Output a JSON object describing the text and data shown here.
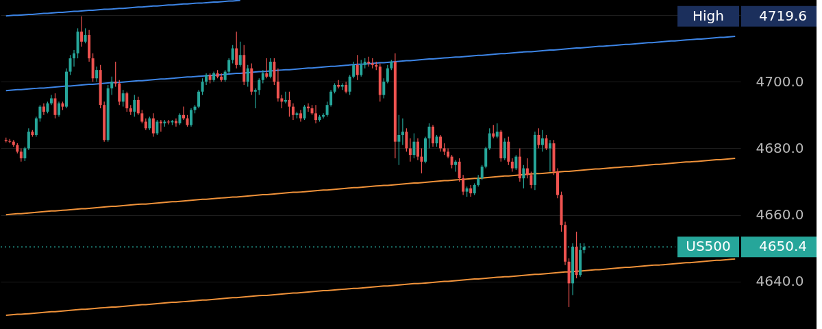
{
  "chart_data": {
    "type": "candlestick",
    "categories": [
      null,
      null,
      null,
      null,
      null,
      null,
      null,
      null,
      null,
      null,
      null,
      null,
      null,
      null,
      null,
      null,
      null,
      null,
      null,
      null,
      null,
      null,
      null,
      null,
      null,
      null,
      null,
      null,
      null,
      null,
      null,
      null,
      null,
      null,
      null,
      null,
      null,
      null,
      null,
      null,
      null,
      null,
      null,
      null,
      null,
      null,
      null,
      null,
      null,
      null,
      null,
      null,
      null,
      null,
      null,
      null,
      null,
      null,
      null,
      null,
      null,
      null,
      null,
      null,
      null,
      null,
      null,
      null,
      null,
      null,
      null,
      null,
      null,
      null,
      null,
      null,
      null,
      null,
      null,
      null,
      null,
      null,
      null,
      null,
      null,
      null,
      null,
      null,
      null,
      null,
      null,
      null,
      null,
      null,
      null,
      null,
      null,
      null,
      null,
      null,
      null,
      null,
      null,
      null,
      null,
      null,
      null,
      null,
      null,
      null,
      null,
      null,
      null,
      null,
      null,
      null,
      null,
      null,
      null,
      null,
      null,
      null,
      null,
      null,
      null,
      null,
      null,
      null,
      null,
      null,
      null,
      null,
      null,
      null,
      null,
      null,
      null,
      null,
      null,
      null,
      null,
      null,
      null,
      null,
      null,
      null,
      null,
      null,
      null,
      null,
      null,
      null,
      null,
      null,
      null,
      null,
      null,
      null,
      null,
      null,
      null,
      null,
      null,
      null,
      null,
      null,
      null,
      null,
      null,
      null,
      null,
      null,
      null,
      null,
      null,
      null,
      null,
      null,
      null,
      null,
      null,
      null,
      null,
      null,
      null,
      null,
      null,
      null,
      null,
      null,
      null,
      null,
      null,
      null
    ],
    "ohlc": [
      [
        4682.5,
        4683.2,
        4681.8,
        4682.2
      ],
      [
        4682.2,
        4682.8,
        4681.5,
        4682.0
      ],
      [
        4682.0,
        4682.5,
        4680.5,
        4681.0
      ],
      [
        4681.0,
        4681.5,
        4678.5,
        4679.0
      ],
      [
        4679.0,
        4680.0,
        4676.0,
        4677.0
      ],
      [
        4677.0,
        4680.5,
        4676.2,
        4680.0
      ],
      [
        4680.0,
        4686.0,
        4679.5,
        4685.0
      ],
      [
        4685.0,
        4685.5,
        4683.5,
        4684.0
      ],
      [
        4684.0,
        4689.5,
        4683.5,
        4689.0
      ],
      [
        4689.0,
        4693.0,
        4688.0,
        4692.5
      ],
      [
        4692.5,
        4693.5,
        4690.0,
        4691.0
      ],
      [
        4691.0,
        4694.0,
        4690.5,
        4693.5
      ],
      [
        4693.5,
        4696.0,
        4693.0,
        4695.0
      ],
      [
        4695.0,
        4696.5,
        4689.0,
        4690.0
      ],
      [
        4690.0,
        4694.0,
        4689.5,
        4693.5
      ],
      [
        4693.5,
        4694.0,
        4691.5,
        4692.5
      ],
      [
        4692.5,
        4704.0,
        4692.0,
        4703.0
      ],
      [
        4703.0,
        4708.0,
        4702.0,
        4707.0
      ],
      [
        4707.0,
        4709.5,
        4704.5,
        4708.5
      ],
      [
        4708.5,
        4716.0,
        4707.0,
        4715.0
      ],
      [
        4715.0,
        4719.6,
        4710.5,
        4712.0
      ],
      [
        4712.0,
        4716.0,
        4711.5,
        4714.0
      ],
      [
        4714.0,
        4715.5,
        4706.0,
        4707.0
      ],
      [
        4707.0,
        4708.5,
        4700.0,
        4701.0
      ],
      [
        4701.0,
        4704.5,
        4700.0,
        4703.5
      ],
      [
        4703.5,
        4705.0,
        4692.0,
        4693.0
      ],
      [
        4693.0,
        4694.0,
        4682.0,
        4682.5
      ],
      [
        4682.5,
        4699.0,
        4682.0,
        4698.0
      ],
      [
        4698.0,
        4701.5,
        4696.0,
        4700.0
      ],
      [
        4700.0,
        4706.0,
        4698.5,
        4699.5
      ],
      [
        4699.5,
        4700.5,
        4693.0,
        4694.0
      ],
      [
        4694.0,
        4697.5,
        4692.5,
        4696.5
      ],
      [
        4696.5,
        4697.0,
        4691.0,
        4692.0
      ],
      [
        4692.0,
        4693.0,
        4690.0,
        4691.0
      ],
      [
        4691.0,
        4696.0,
        4689.5,
        4694.5
      ],
      [
        4694.5,
        4695.5,
        4690.0,
        4690.5
      ],
      [
        4690.5,
        4691.5,
        4687.5,
        4688.0
      ],
      [
        4688.0,
        4689.0,
        4685.5,
        4686.0
      ],
      [
        4686.0,
        4689.5,
        4685.5,
        4689.0
      ],
      [
        4689.0,
        4690.5,
        4683.5,
        4684.5
      ],
      [
        4684.5,
        4688.5,
        4684.0,
        4688.0
      ],
      [
        4688.0,
        4688.5,
        4685.0,
        4687.5
      ],
      [
        4687.5,
        4688.5,
        4686.5,
        4688.0
      ],
      [
        4688.0,
        4688.5,
        4687.2,
        4687.8
      ],
      [
        4687.8,
        4688.5,
        4687.0,
        4688.2
      ],
      [
        4688.2,
        4689.0,
        4686.5,
        4687.5
      ],
      [
        4687.5,
        4690.5,
        4687.0,
        4690.0
      ],
      [
        4690.0,
        4692.5,
        4688.5,
        4689.0
      ],
      [
        4689.0,
        4690.0,
        4686.5,
        4687.0
      ],
      [
        4687.0,
        4692.0,
        4686.5,
        4691.5
      ],
      [
        4691.5,
        4693.0,
        4690.5,
        4692.5
      ],
      [
        4692.5,
        4697.5,
        4692.0,
        4697.0
      ],
      [
        4697.0,
        4701.0,
        4696.0,
        4700.0
      ],
      [
        4700.0,
        4702.5,
        4699.0,
        4702.0
      ],
      [
        4702.0,
        4702.5,
        4699.5,
        4700.5
      ],
      [
        4700.5,
        4703.0,
        4700.0,
        4702.5
      ],
      [
        4702.5,
        4703.5,
        4701.0,
        4701.5
      ],
      [
        4701.5,
        4702.5,
        4700.0,
        4700.5
      ],
      [
        4700.5,
        4703.5,
        4700.0,
        4703.0
      ],
      [
        4703.0,
        4707.0,
        4702.5,
        4706.5
      ],
      [
        4706.5,
        4711.0,
        4705.5,
        4710.0
      ],
      [
        4710.0,
        4715.0,
        4704.0,
        4705.0
      ],
      [
        4705.0,
        4712.0,
        4704.5,
        4708.0
      ],
      [
        4708.0,
        4711.0,
        4699.0,
        4700.0
      ],
      [
        4700.0,
        4705.0,
        4698.5,
        4704.0
      ],
      [
        4704.0,
        4705.5,
        4696.0,
        4697.0
      ],
      [
        4697.0,
        4698.0,
        4692.0,
        4697.5
      ],
      [
        4697.5,
        4701.0,
        4696.0,
        4700.5
      ],
      [
        4700.5,
        4703.5,
        4699.5,
        4702.5
      ],
      [
        4702.5,
        4707.0,
        4701.0,
        4701.5
      ],
      [
        4701.5,
        4707.0,
        4701.0,
        4706.0
      ],
      [
        4706.0,
        4707.0,
        4699.0,
        4700.0
      ],
      [
        4700.0,
        4704.0,
        4694.0,
        4695.0
      ],
      [
        4695.0,
        4696.0,
        4692.0,
        4694.0
      ],
      [
        4694.0,
        4697.0,
        4693.5,
        4694.5
      ],
      [
        4694.5,
        4697.0,
        4689.5,
        4692.5
      ],
      [
        4692.5,
        4693.5,
        4688.5,
        4690.0
      ],
      [
        4690.0,
        4691.0,
        4689.0,
        4690.5
      ],
      [
        4690.5,
        4691.5,
        4688.0,
        4689.0
      ],
      [
        4689.0,
        4693.0,
        4688.5,
        4692.5
      ],
      [
        4692.5,
        4693.5,
        4691.0,
        4692.0
      ],
      [
        4692.0,
        4693.0,
        4690.0,
        4690.5
      ],
      [
        4690.5,
        4693.0,
        4687.5,
        4688.5
      ],
      [
        4688.5,
        4690.0,
        4688.0,
        4689.5
      ],
      [
        4689.5,
        4690.5,
        4689.0,
        4690.0
      ],
      [
        4690.0,
        4694.0,
        4689.5,
        4693.0
      ],
      [
        4693.0,
        4697.5,
        4692.5,
        4697.0
      ],
      [
        4697.0,
        4699.5,
        4696.5,
        4699.0
      ],
      [
        4699.0,
        4700.5,
        4698.0,
        4698.5
      ],
      [
        4698.5,
        4699.5,
        4697.5,
        4699.0
      ],
      [
        4699.0,
        4700.0,
        4696.5,
        4697.0
      ],
      [
        4697.0,
        4702.0,
        4696.0,
        4701.5
      ],
      [
        4701.5,
        4706.0,
        4701.0,
        4705.0
      ],
      [
        4705.0,
        4708.0,
        4700.5,
        4702.0
      ],
      [
        4702.0,
        4706.5,
        4701.5,
        4705.0
      ],
      [
        4705.0,
        4707.0,
        4704.0,
        4706.0
      ],
      [
        4706.0,
        4707.5,
        4704.5,
        4705.5
      ],
      [
        4705.5,
        4707.0,
        4704.0,
        4705.0
      ],
      [
        4705.0,
        4706.0,
        4703.5,
        4704.5
      ],
      [
        4704.5,
        4705.5,
        4694.0,
        4696.0
      ],
      [
        4696.0,
        4701.0,
        4695.0,
        4700.0
      ],
      [
        4700.0,
        4705.0,
        4699.5,
        4704.0
      ],
      [
        4704.0,
        4706.5,
        4703.5,
        4706.0
      ],
      [
        4706.0,
        4708.5,
        4677.0,
        4682.0
      ],
      [
        4682.0,
        4690.0,
        4675.0,
        4684.0
      ],
      [
        4684.0,
        4689.0,
        4681.0,
        4685.0
      ],
      [
        4685.0,
        4686.0,
        4679.0,
        4680.0
      ],
      [
        4680.0,
        4683.0,
        4676.0,
        4678.0
      ],
      [
        4678.0,
        4684.5,
        4677.0,
        4682.0
      ],
      [
        4682.0,
        4683.0,
        4676.5,
        4677.5
      ],
      [
        4677.5,
        4680.0,
        4672.5,
        4676.0
      ],
      [
        4676.0,
        4683.5,
        4675.5,
        4683.0
      ],
      [
        4683.0,
        4687.5,
        4680.0,
        4686.5
      ],
      [
        4686.5,
        4687.0,
        4680.5,
        4681.5
      ],
      [
        4681.5,
        4684.0,
        4680.5,
        4683.5
      ],
      [
        4683.5,
        4684.0,
        4679.0,
        4680.0
      ],
      [
        4680.0,
        4681.5,
        4678.0,
        4679.0
      ],
      [
        4679.0,
        4680.0,
        4677.0,
        4677.5
      ],
      [
        4677.5,
        4678.0,
        4674.0,
        4675.0
      ],
      [
        4675.0,
        4676.5,
        4673.0,
        4676.0
      ],
      [
        4676.0,
        4677.0,
        4670.0,
        4671.0
      ],
      [
        4671.0,
        4672.0,
        4666.0,
        4667.0
      ],
      [
        4667.0,
        4668.5,
        4665.5,
        4668.0
      ],
      [
        4668.0,
        4669.0,
        4665.5,
        4666.5
      ],
      [
        4666.5,
        4669.5,
        4666.0,
        4669.0
      ],
      [
        4669.0,
        4672.0,
        4668.5,
        4671.0
      ],
      [
        4671.0,
        4675.0,
        4670.5,
        4674.5
      ],
      [
        4674.5,
        4680.5,
        4674.0,
        4680.0
      ],
      [
        4680.0,
        4686.0,
        4679.5,
        4684.5
      ],
      [
        4684.5,
        4687.0,
        4683.0,
        4683.5
      ],
      [
        4683.5,
        4687.5,
        4683.0,
        4685.0
      ],
      [
        4685.0,
        4685.5,
        4676.0,
        4677.0
      ],
      [
        4677.0,
        4683.0,
        4676.5,
        4682.0
      ],
      [
        4682.0,
        4683.5,
        4675.0,
        4676.0
      ],
      [
        4676.0,
        4677.0,
        4673.0,
        4674.0
      ],
      [
        4674.0,
        4678.0,
        4673.5,
        4677.5
      ],
      [
        4677.5,
        4680.0,
        4670.0,
        4671.0
      ],
      [
        4671.0,
        4675.0,
        4668.0,
        4674.0
      ],
      [
        4674.0,
        4677.0,
        4671.0,
        4672.0
      ],
      [
        4672.0,
        4673.0,
        4668.0,
        4669.0
      ],
      [
        4669.0,
        4685.0,
        4667.5,
        4684.0
      ],
      [
        4684.0,
        4686.0,
        4680.0,
        4681.0
      ],
      [
        4681.0,
        4685.5,
        4679.0,
        4683.0
      ],
      [
        4683.0,
        4684.0,
        4679.5,
        4680.0
      ],
      [
        4680.0,
        4682.5,
        4673.0,
        4681.5
      ],
      [
        4681.5,
        4682.5,
        4672.0,
        4673.0
      ],
      [
        4673.0,
        4674.0,
        4665.0,
        4666.0
      ],
      [
        4666.0,
        4667.0,
        4655.0,
        4657.0
      ],
      [
        4657.0,
        4658.0,
        4645.0,
        4646.0
      ],
      [
        4646.0,
        4647.0,
        4632.4,
        4639.5
      ],
      [
        4639.5,
        4651.5,
        4636.0,
        4650.5
      ],
      [
        4650.5,
        4655.0,
        4641.0,
        4642.0
      ],
      [
        4642.0,
        4651.5,
        4641.5,
        4649.5
      ],
      [
        4649.5,
        4651.5,
        4648.5,
        4650.4
      ],
      null,
      null,
      null,
      null,
      null,
      null,
      null,
      null,
      null,
      null,
      null,
      null,
      null,
      null,
      null,
      null,
      null,
      null,
      null,
      null,
      null,
      null,
      null,
      null,
      null,
      null,
      null,
      null,
      null,
      null,
      null,
      null,
      null,
      null,
      null,
      null,
      null,
      null,
      null,
      null
    ],
    "series": [
      {
        "type": "line",
        "color": "#3d85e6",
        "values": [
          4719.7,
          4719.8,
          4719.9,
          4719.9,
          4720.0,
          4720.1,
          4720.2,
          4720.2,
          4720.3,
          4720.4,
          4720.5,
          4720.5,
          4720.6,
          4720.7,
          4720.8,
          4720.8,
          4720.9,
          4721.0,
          4721.1,
          4721.1,
          4721.2,
          4721.3,
          4721.4,
          4721.4,
          4721.5,
          4721.6,
          4721.7,
          4721.7,
          4721.8,
          4721.9,
          4722.0,
          4722.0,
          4722.1,
          4722.2,
          4722.3,
          4722.4,
          4722.4,
          4722.5,
          4722.6,
          4722.7,
          4722.7,
          4722.8,
          4722.9,
          4723.0,
          4723.0,
          4723.1,
          4723.2,
          4723.3,
          4723.3,
          4723.4,
          4723.5,
          4723.6,
          4723.6,
          4723.7,
          4723.8,
          4723.9,
          4723.9,
          4724.0,
          4724.1,
          4724.2,
          4724.2,
          4724.3,
          4724.4,
          null,
          null,
          null,
          null,
          null,
          null,
          null,
          null,
          null,
          null,
          null,
          null,
          null,
          null,
          null,
          null,
          null,
          null,
          null,
          null,
          null,
          null,
          null,
          null,
          null,
          null,
          null,
          null,
          null,
          null,
          null,
          null,
          null,
          null,
          null,
          null,
          null,
          null,
          null,
          null,
          null,
          null,
          null,
          null,
          null,
          null,
          null,
          null,
          null,
          null,
          null,
          null,
          null,
          null,
          null,
          null,
          null,
          null,
          null,
          null,
          null,
          null,
          null,
          null,
          null,
          null,
          null,
          null,
          null,
          null,
          null,
          null,
          null,
          null,
          null,
          null,
          null,
          null,
          null,
          null,
          null,
          null,
          null,
          null,
          null,
          null,
          null,
          null,
          null,
          null,
          null,
          null,
          null,
          null,
          null,
          null,
          null,
          null,
          null,
          null,
          null,
          null,
          null,
          null,
          null,
          null,
          null,
          null,
          null,
          null,
          null,
          null,
          null,
          null,
          null,
          null,
          null,
          null,
          null,
          null,
          null,
          null,
          null,
          null,
          null,
          null,
          null,
          null,
          null,
          null,
          null
        ]
      },
      {
        "type": "line",
        "color": "#3d85e6",
        "values": [
          4697.3,
          4697.4,
          4697.5,
          4697.6,
          4697.6,
          4697.7,
          4697.8,
          4697.9,
          4698.0,
          4698.1,
          4698.1,
          4698.2,
          4698.3,
          4698.4,
          4698.5,
          4698.6,
          4698.7,
          4698.7,
          4698.8,
          4698.9,
          4699.0,
          4699.1,
          4699.2,
          4699.2,
          4699.3,
          4699.4,
          4699.5,
          4699.6,
          4699.7,
          4699.7,
          4699.8,
          4699.9,
          4700.0,
          4700.1,
          4700.2,
          4700.3,
          4700.3,
          4700.4,
          4700.5,
          4700.6,
          4700.7,
          4700.8,
          4700.8,
          4700.9,
          4701.0,
          4701.1,
          4701.2,
          4701.3,
          4701.4,
          4701.4,
          4701.5,
          4701.6,
          4701.7,
          4701.8,
          4701.9,
          4701.9,
          4702.0,
          4702.1,
          4702.2,
          4702.3,
          4702.4,
          4702.5,
          4702.5,
          4702.6,
          4702.7,
          4702.8,
          4702.9,
          4703.0,
          4703.0,
          4703.1,
          4703.2,
          4703.3,
          4703.4,
          4703.5,
          4703.6,
          4703.6,
          4703.7,
          4703.8,
          4703.9,
          4704.0,
          4704.1,
          4704.1,
          4704.2,
          4704.3,
          4704.4,
          4704.5,
          4704.6,
          4704.6,
          4704.7,
          4704.8,
          4704.9,
          4705.0,
          4705.1,
          4705.2,
          4705.2,
          4705.3,
          4705.4,
          4705.5,
          4705.6,
          4705.7,
          4705.7,
          4705.8,
          4705.9,
          4706.0,
          4706.1,
          4706.2,
          4706.3,
          4706.3,
          4706.4,
          4706.5,
          4706.6,
          4706.7,
          4706.8,
          4706.8,
          4706.9,
          4707.0,
          4707.1,
          4707.2,
          4707.3,
          4707.4,
          4707.4,
          4707.5,
          4707.6,
          4707.7,
          4707.8,
          4707.9,
          4707.9,
          4708.0,
          4708.1,
          4708.2,
          4708.3,
          4708.4,
          4708.4,
          4708.5,
          4708.6,
          4708.7,
          4708.8,
          4708.9,
          4709.0,
          4709.0,
          4709.1,
          4709.2,
          4709.3,
          4709.4,
          4709.5,
          4709.5,
          4709.6,
          4709.7,
          4709.8,
          4709.9,
          4710.0,
          4710.1,
          4710.1,
          4710.2,
          4710.3,
          4710.4,
          4710.5,
          4710.6,
          4710.6,
          4710.7,
          4710.8,
          4710.9,
          4711.0,
          4711.1,
          4711.2,
          4711.2,
          4711.3,
          4711.4,
          4711.5,
          4711.6,
          4711.7,
          4711.7,
          4711.8,
          4711.9,
          4712.0,
          4712.1,
          4712.2,
          4712.2,
          4712.3,
          4712.4,
          4712.5,
          4712.6,
          4712.7,
          4712.8,
          4712.8,
          4712.9,
          4713.0,
          4713.1,
          4713.2,
          4713.3,
          4713.3,
          4713.4,
          4713.5,
          4713.6
        ]
      },
      {
        "type": "line",
        "color": "#f0923a",
        "values": [
          4660.1,
          4660.2,
          4660.3,
          4660.4,
          4660.4,
          4660.5,
          4660.6,
          4660.7,
          4660.8,
          4660.9,
          4661.0,
          4661.1,
          4661.2,
          4661.2,
          4661.3,
          4661.4,
          4661.5,
          4661.6,
          4661.7,
          4661.8,
          4661.9,
          4661.9,
          4662.0,
          4662.1,
          4662.2,
          4662.3,
          4662.4,
          4662.5,
          4662.6,
          4662.6,
          4662.7,
          4662.8,
          4662.9,
          4663.0,
          4663.1,
          4663.2,
          4663.3,
          4663.3,
          4663.4,
          4663.5,
          4663.6,
          4663.7,
          4663.8,
          4663.9,
          4664.0,
          4664.0,
          4664.1,
          4664.2,
          4664.3,
          4664.4,
          4664.5,
          4664.6,
          4664.7,
          4664.7,
          4664.8,
          4664.9,
          4665.0,
          4665.1,
          4665.2,
          4665.3,
          4665.4,
          4665.4,
          4665.5,
          4665.6,
          4665.7,
          4665.8,
          4665.9,
          4666.0,
          4666.1,
          4666.1,
          4666.2,
          4666.3,
          4666.4,
          4666.5,
          4666.6,
          4666.7,
          4666.8,
          4666.8,
          4666.9,
          4667.0,
          4667.1,
          4667.2,
          4667.3,
          4667.4,
          4667.5,
          4667.5,
          4667.6,
          4667.7,
          4667.8,
          4667.9,
          4668.0,
          4668.1,
          4668.2,
          4668.2,
          4668.3,
          4668.4,
          4668.5,
          4668.6,
          4668.7,
          4668.8,
          4668.9,
          4668.9,
          4669.0,
          4669.1,
          4669.2,
          4669.3,
          4669.4,
          4669.5,
          4669.6,
          4669.6,
          4669.7,
          4669.8,
          4669.9,
          4670.0,
          4670.1,
          4670.2,
          4670.3,
          4670.3,
          4670.4,
          4670.5,
          4670.6,
          4670.7,
          4670.8,
          4670.9,
          4671.0,
          4671.0,
          4671.1,
          4671.2,
          4671.3,
          4671.4,
          4671.5,
          4671.6,
          4671.7,
          4671.7,
          4671.8,
          4671.9,
          4672.0,
          4672.1,
          4672.2,
          4672.3,
          4672.4,
          4672.4,
          4672.5,
          4672.6,
          4672.7,
          4672.8,
          4672.9,
          4673.0,
          4673.1,
          4673.1,
          4673.2,
          4673.3,
          4673.4,
          4673.5,
          4673.6,
          4673.7,
          4673.8,
          4673.8,
          4673.9,
          4674.0,
          4674.1,
          4674.2,
          4674.3,
          4674.4,
          4674.5,
          4674.5,
          4674.6,
          4674.7,
          4674.8,
          4674.9,
          4675.0,
          4675.1,
          4675.2,
          4675.2,
          4675.3,
          4675.4,
          4675.5,
          4675.6,
          4675.7,
          4675.8,
          4675.9,
          4675.9,
          4676.0,
          4676.1,
          4676.2,
          4676.3,
          4676.4,
          4676.5,
          4676.6,
          4676.6,
          4676.7,
          4676.8,
          4676.9,
          4677.0
        ]
      },
      {
        "type": "line",
        "color": "#f0923a",
        "values": [
          4629.9,
          4630.0,
          4630.1,
          4630.2,
          4630.2,
          4630.3,
          4630.4,
          4630.5,
          4630.6,
          4630.7,
          4630.8,
          4630.9,
          4631.0,
          4631.0,
          4631.1,
          4631.2,
          4631.3,
          4631.4,
          4631.5,
          4631.6,
          4631.7,
          4631.7,
          4631.8,
          4631.9,
          4632.0,
          4632.1,
          4632.2,
          4632.3,
          4632.4,
          4632.4,
          4632.5,
          4632.6,
          4632.7,
          4632.8,
          4632.9,
          4633.0,
          4633.1,
          4633.1,
          4633.2,
          4633.3,
          4633.4,
          4633.5,
          4633.6,
          4633.7,
          4633.8,
          4633.8,
          4633.9,
          4634.0,
          4634.1,
          4634.2,
          4634.3,
          4634.4,
          4634.5,
          4634.5,
          4634.6,
          4634.7,
          4634.8,
          4634.9,
          4635.0,
          4635.1,
          4635.2,
          4635.2,
          4635.3,
          4635.4,
          4635.5,
          4635.6,
          4635.7,
          4635.8,
          4635.9,
          4635.9,
          4636.0,
          4636.1,
          4636.2,
          4636.3,
          4636.4,
          4636.5,
          4636.6,
          4636.6,
          4636.7,
          4636.8,
          4636.9,
          4637.0,
          4637.1,
          4637.2,
          4637.3,
          4637.3,
          4637.4,
          4637.5,
          4637.6,
          4637.7,
          4637.8,
          4637.9,
          4638.0,
          4638.0,
          4638.1,
          4638.2,
          4638.3,
          4638.4,
          4638.5,
          4638.6,
          4638.7,
          4638.7,
          4638.8,
          4638.9,
          4639.0,
          4639.1,
          4639.2,
          4639.3,
          4639.4,
          4639.4,
          4639.5,
          4639.6,
          4639.7,
          4639.8,
          4639.9,
          4640.0,
          4640.1,
          4640.1,
          4640.2,
          4640.3,
          4640.4,
          4640.5,
          4640.6,
          4640.7,
          4640.8,
          4640.8,
          4640.9,
          4641.0,
          4641.1,
          4641.2,
          4641.3,
          4641.4,
          4641.5,
          4641.5,
          4641.6,
          4641.7,
          4641.8,
          4641.9,
          4642.0,
          4642.1,
          4642.2,
          4642.2,
          4642.3,
          4642.4,
          4642.5,
          4642.6,
          4642.7,
          4642.8,
          4642.9,
          4642.9,
          4643.0,
          4643.1,
          4643.2,
          4643.3,
          4643.4,
          4643.5,
          4643.6,
          4643.6,
          4643.7,
          4643.8,
          4643.9,
          4644.0,
          4644.1,
          4644.2,
          4644.3,
          4644.3,
          4644.4,
          4644.5,
          4644.6,
          4644.7,
          4644.8,
          4644.9,
          4645.0,
          4645.0,
          4645.1,
          4645.2,
          4645.3,
          4645.4,
          4645.5,
          4645.6,
          4645.7,
          4645.7,
          4645.8,
          4645.9,
          4646.0,
          4646.1,
          4646.2,
          4646.3,
          4646.4,
          4646.4,
          4646.5,
          4646.6,
          4646.7,
          4646.8
        ]
      }
    ],
    "ylim": [
      4625.8,
      4724.5
    ],
    "yticks": [
      {
        "value": 4640,
        "label": "4640.0"
      },
      {
        "value": 4660,
        "label": "4660.0"
      },
      {
        "value": 4680,
        "label": "4680.0"
      },
      {
        "value": 4700,
        "label": "4700.0"
      },
      {
        "value": 4720,
        "label": null
      }
    ],
    "tick_labels": "y",
    "grid": "y",
    "ref_lines": [
      {
        "axis": "y",
        "value": 4650.4,
        "label": "US500",
        "color": "#26a69a",
        "line_style": "dotted"
      }
    ],
    "annotations": [
      "High",
      "4719.6",
      "4650.4"
    ]
  }
}
